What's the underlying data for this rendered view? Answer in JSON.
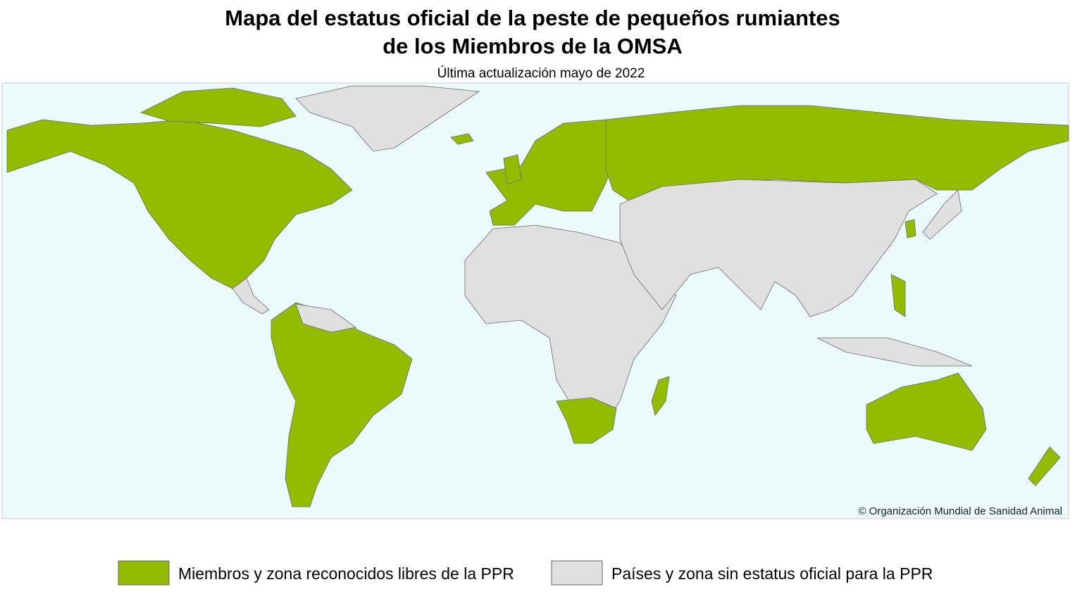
{
  "map": {
    "title": [
      "Mapa del estatus oficial de la peste de pequeños rumiantes",
      "de los Miembros de la OMSA"
    ],
    "subtitle": "Última actualización mayo de 2022",
    "copyright": "© Organización Mundial de Sanidad Animal"
  },
  "legend": [
    "Miembros y zona reconocidos libres de la PPR",
    "Países y zona sin estatus oficial para la PPR"
  ]
}
